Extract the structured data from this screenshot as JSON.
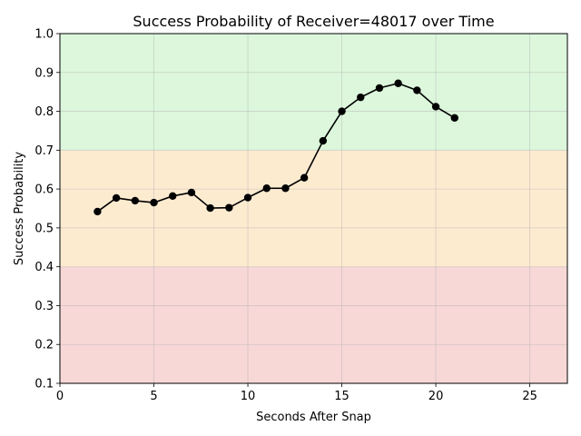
{
  "chart_data": {
    "type": "line",
    "title": "Success Probability of Receiver=48017 over Time",
    "xlabel": "Seconds After Snap",
    "ylabel": "Success Probability",
    "xlim": [
      0,
      27
    ],
    "ylim": [
      0.1,
      1.0
    ],
    "x_ticks": [
      0,
      5,
      10,
      15,
      20,
      25
    ],
    "y_ticks": [
      0.1,
      0.2,
      0.3,
      0.4,
      0.5,
      0.6,
      0.7,
      0.8,
      0.9,
      1.0
    ],
    "grid": true,
    "bands": [
      {
        "from": 0.1,
        "to": 0.4,
        "color": "#f8d7d7"
      },
      {
        "from": 0.4,
        "to": 0.7,
        "color": "#fdebd0"
      },
      {
        "from": 0.7,
        "to": 1.0,
        "color": "#dcf7dc"
      }
    ],
    "series": [
      {
        "color": "#000000",
        "marker": "circle",
        "x": [
          2,
          3,
          4,
          5,
          6,
          7,
          8,
          9,
          10,
          11,
          12,
          13,
          14,
          15,
          16,
          17,
          18,
          19,
          20,
          21
        ],
        "y": [
          0.542,
          0.577,
          0.57,
          0.565,
          0.582,
          0.591,
          0.551,
          0.552,
          0.578,
          0.602,
          0.602,
          0.629,
          0.724,
          0.8,
          0.836,
          0.86,
          0.872,
          0.854,
          0.812,
          0.783
        ]
      }
    ]
  }
}
